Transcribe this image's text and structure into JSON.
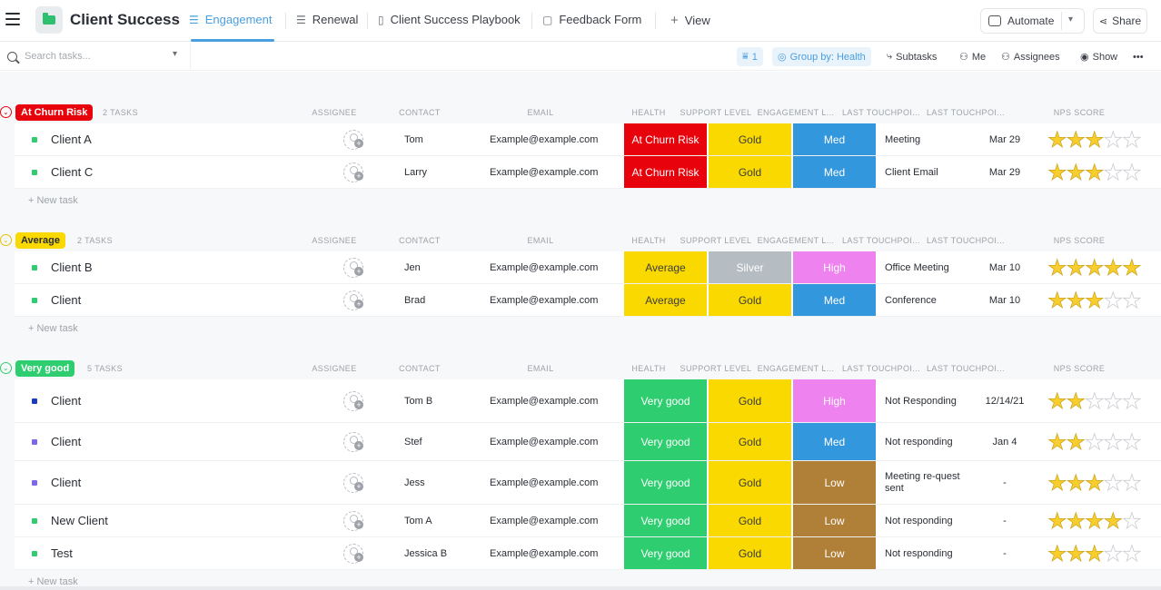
{
  "header": {
    "space_title": "Client Success",
    "tabs": [
      {
        "label": "Engagement",
        "icon": "list-icon"
      },
      {
        "label": "Renewal",
        "icon": "list-icon"
      },
      {
        "label": "Client Success Playbook",
        "icon": "doc-icon"
      },
      {
        "label": "Feedback Form",
        "icon": "form-icon"
      }
    ],
    "add_view_label": "View",
    "automate_label": "Automate",
    "share_label": "Share"
  },
  "toolbar": {
    "search_placeholder": "Search tasks...",
    "filter_count": "1",
    "group_by_label": "Group by: Health",
    "subtasks_label": "Subtasks",
    "me_label": "Me",
    "assignees_label": "Assignees",
    "show_label": "Show",
    "more_label": "•••"
  },
  "columns": [
    "ASSIGNEE",
    "CONTACT",
    "EMAIL",
    "HEALTH",
    "SUPPORT LEVEL",
    "ENGAGEMENT L...",
    "LAST TOUCHPOI...",
    "LAST TOUCHPOI...",
    "NPS SCORE"
  ],
  "new_task_label": "+ New task",
  "colors": {
    "at_churn_risk": "#e8020b",
    "average": "#f9d900",
    "very_good": "#2ecd6f",
    "gold": "#f9d900",
    "silver": "#b5bcc2",
    "med": "#3397dd",
    "high": "#ee82ee",
    "low": "#b07f38"
  },
  "groups": [
    {
      "label": "At Churn Risk",
      "count": "2 TASKS",
      "rows": [
        {
          "name": "Client A",
          "contact": "Tom",
          "email": "Example@example.com",
          "health": "At Churn Risk",
          "support": "Gold",
          "engagement": "Med",
          "touchpoint": "Meeting",
          "date": "Mar 29",
          "nps": 3
        },
        {
          "name": "Client C",
          "contact": "Larry",
          "email": "Example@example.com",
          "health": "At Churn Risk",
          "support": "Gold",
          "engagement": "Med",
          "touchpoint": "Client Email",
          "date": "Mar 29",
          "nps": 3
        }
      ]
    },
    {
      "label": "Average",
      "count": "2 TASKS",
      "rows": [
        {
          "name": "Client B",
          "contact": "Jen",
          "email": "Example@example.com",
          "health": "Average",
          "support": "Silver",
          "engagement": "High",
          "touchpoint": "Office Meeting",
          "date": "Mar 10",
          "nps": 5
        },
        {
          "name": "Client",
          "contact": "Brad",
          "email": "Example@example.com",
          "health": "Average",
          "support": "Gold",
          "engagement": "Med",
          "touchpoint": "Conference",
          "date": "Mar 10",
          "nps": 3
        }
      ]
    },
    {
      "label": "Very good",
      "count": "5 TASKS",
      "rows": [
        {
          "name": "Client",
          "contact": "Tom B",
          "email": "Example@example.com",
          "health": "Very good",
          "support": "Gold",
          "engagement": "High",
          "touchpoint": "Not Responding",
          "date": "12/14/21",
          "nps": 2
        },
        {
          "name": "Client",
          "contact": "Stef",
          "email": "Example@example.com",
          "health": "Very good",
          "support": "Gold",
          "engagement": "Med",
          "touchpoint": "Not responding",
          "date": "Jan 4",
          "nps": 2
        },
        {
          "name": "Client",
          "contact": "Jess",
          "email": "Example@example.com",
          "health": "Very good",
          "support": "Gold",
          "engagement": "Low",
          "touchpoint": "Meeting re-quest sent",
          "date": "-",
          "nps": 3
        },
        {
          "name": "New Client",
          "contact": "Tom A",
          "email": "Example@example.com",
          "health": "Very good",
          "support": "Gold",
          "engagement": "Low",
          "touchpoint": "Not responding",
          "date": "-",
          "nps": 4
        },
        {
          "name": "Test",
          "contact": "Jessica B",
          "email": "Example@example.com",
          "health": "Very good",
          "support": "Gold",
          "engagement": "Low",
          "touchpoint": "Not responding",
          "date": "-",
          "nps": 3
        }
      ]
    }
  ]
}
